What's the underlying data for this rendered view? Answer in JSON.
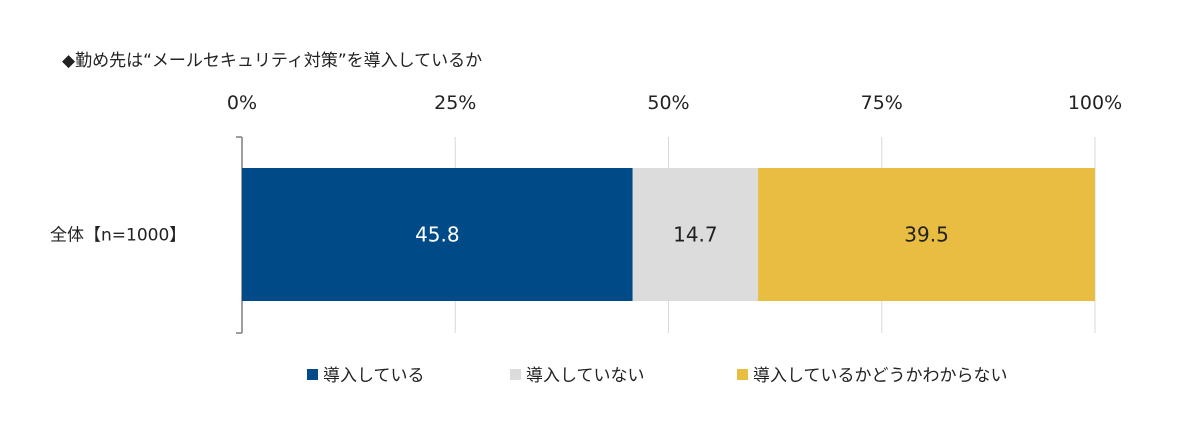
{
  "chart_data": {
    "type": "bar",
    "orientation": "horizontal",
    "stacked": true,
    "title": "◆勤め先は“メールセキュリティ対策”を導入しているか",
    "xlim": [
      0,
      100
    ],
    "xticks": [
      "0%",
      "25%",
      "50%",
      "75%",
      "100%"
    ],
    "categories": [
      "全体【n=1000】"
    ],
    "series": [
      {
        "name": "導入している",
        "values": [
          45.8
        ],
        "labels": [
          "45.8"
        ],
        "color": "#004a87",
        "label_color": "#ffffff"
      },
      {
        "name": "導入していない",
        "values": [
          14.7
        ],
        "labels": [
          "14.7"
        ],
        "color": "#dcdcdc",
        "label_color": "#222222"
      },
      {
        "name": "導入しているかどうかわからない",
        "values": [
          39.5
        ],
        "labels": [
          "39.5"
        ],
        "color": "#e8bd42",
        "label_color": "#222222"
      }
    ],
    "grid": true,
    "legend": "bottom"
  }
}
